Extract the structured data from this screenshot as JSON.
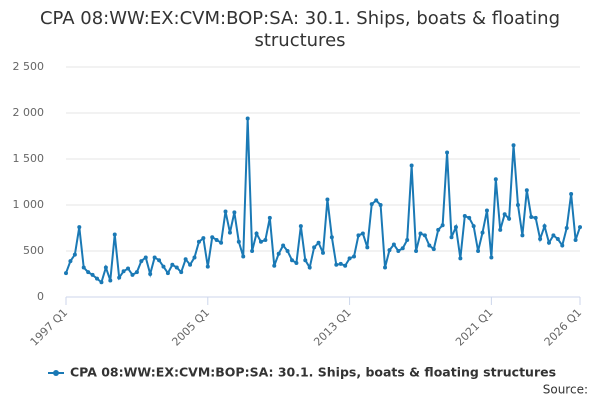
{
  "chart_data": {
    "type": "line",
    "title": "CPA 08:WW:EX:CVM:BOP:SA: 30.1. Ships, boats & floating structures",
    "source": "Source:",
    "categories": [
      "1997 Q1",
      null,
      null,
      null,
      null,
      null,
      null,
      null,
      null,
      null,
      null,
      null,
      null,
      null,
      null,
      null,
      null,
      null,
      null,
      null,
      null,
      null,
      null,
      null,
      null,
      null,
      null,
      null,
      null,
      null,
      null,
      null,
      "2005 Q1",
      null,
      null,
      null,
      null,
      null,
      null,
      null,
      null,
      null,
      null,
      null,
      null,
      null,
      null,
      null,
      null,
      null,
      null,
      null,
      null,
      null,
      null,
      null,
      null,
      null,
      null,
      null,
      null,
      null,
      null,
      null,
      "2013 Q1",
      null,
      null,
      null,
      null,
      null,
      null,
      null,
      null,
      null,
      null,
      null,
      null,
      null,
      null,
      null,
      null,
      null,
      null,
      null,
      null,
      null,
      null,
      null,
      null,
      null,
      null,
      null,
      null,
      null,
      null,
      null,
      "2021 Q1",
      null,
      null,
      null,
      null,
      null,
      null,
      null,
      null,
      null,
      null,
      null,
      null,
      null,
      null,
      null,
      null,
      null,
      null,
      null,
      "2026 Q1"
    ],
    "series": [
      {
        "name": "CPA 08:WW:EX:CVM:BOP:SA: 30.1. Ships, boats & floating structures",
        "color": "#1a79b5",
        "values": [
          260,
          390,
          460,
          760,
          320,
          270,
          240,
          200,
          160,
          320,
          180,
          680,
          210,
          280,
          310,
          240,
          270,
          390,
          430,
          250,
          430,
          400,
          330,
          260,
          350,
          320,
          270,
          410,
          350,
          430,
          600,
          640,
          330,
          650,
          620,
          590,
          930,
          700,
          920,
          600,
          440,
          1940,
          500,
          690,
          600,
          620,
          860,
          340,
          470,
          560,
          500,
          400,
          370,
          770,
          400,
          320,
          540,
          590,
          480,
          1060,
          650,
          350,
          360,
          340,
          420,
          440,
          670,
          690,
          540,
          1010,
          1050,
          1000,
          320,
          510,
          570,
          500,
          530,
          620,
          1430,
          500,
          690,
          670,
          560,
          520,
          730,
          780,
          1570,
          650,
          760,
          420,
          880,
          860,
          770,
          500,
          700,
          940,
          430,
          1280,
          730,
          900,
          850,
          1650,
          1000,
          670,
          1160,
          870,
          860,
          630,
          770,
          590,
          670,
          630,
          560,
          750,
          1120,
          620,
          760
        ]
      }
    ],
    "ylim": [
      0,
      2500
    ],
    "yticks": [
      0,
      500,
      {
        "value": 1000,
        "label": "1 000"
      },
      {
        "value": 1500,
        "label": "1 500"
      },
      {
        "value": 2000,
        "label": "2 000"
      },
      {
        "value": 2500,
        "label": "2 500"
      }
    ],
    "grid": true
  }
}
